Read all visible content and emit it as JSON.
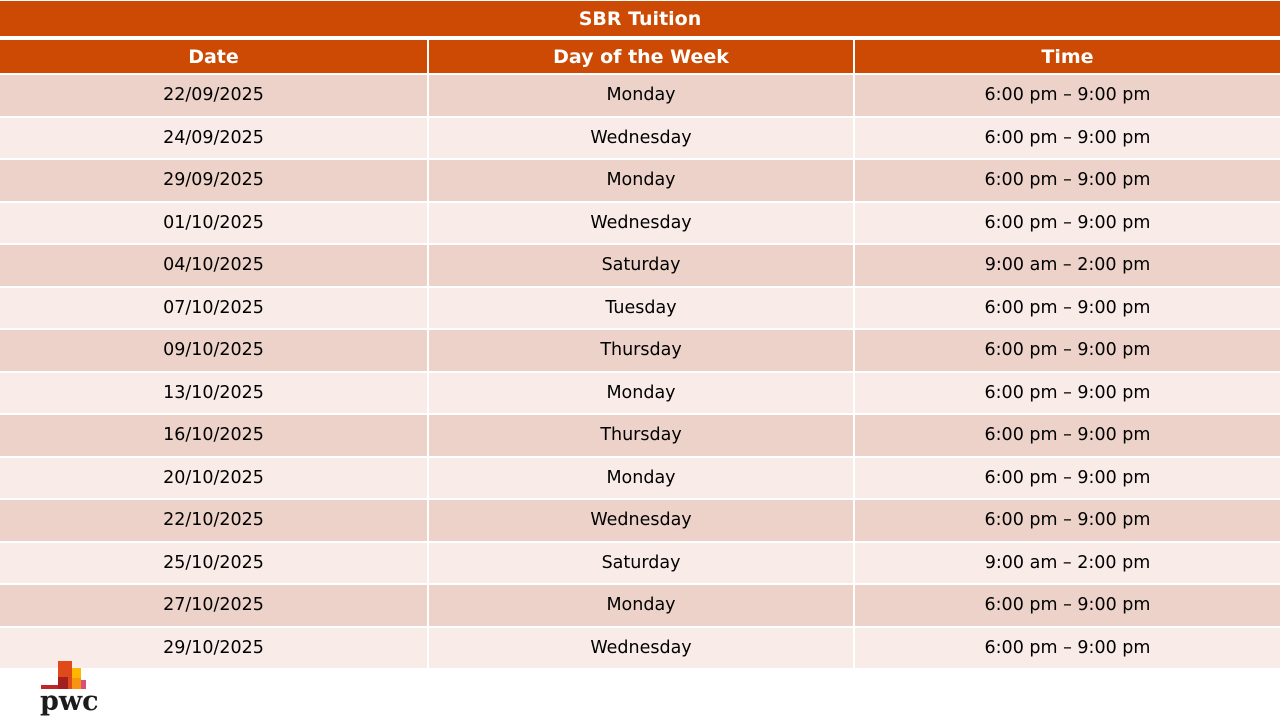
{
  "title": "SBR Tuition",
  "table": {
    "columns": [
      "Date",
      "Day of the Week",
      "Time"
    ],
    "rows": [
      {
        "date": "22/09/2025",
        "day": "Monday",
        "time": "6:00 pm – 9:00 pm"
      },
      {
        "date": "24/09/2025",
        "day": "Wednesday",
        "time": "6:00 pm – 9:00 pm"
      },
      {
        "date": "29/09/2025",
        "day": "Monday",
        "time": "6:00 pm – 9:00 pm"
      },
      {
        "date": "01/10/2025",
        "day": "Wednesday",
        "time": "6:00 pm – 9:00 pm"
      },
      {
        "date": "04/10/2025",
        "day": "Saturday",
        "time": "9:00 am – 2:00 pm"
      },
      {
        "date": "07/10/2025",
        "day": "Tuesday",
        "time": "6:00 pm – 9:00 pm"
      },
      {
        "date": "09/10/2025",
        "day": "Thursday",
        "time": "6:00 pm – 9:00 pm"
      },
      {
        "date": "13/10/2025",
        "day": "Monday",
        "time": "6:00 pm – 9:00 pm"
      },
      {
        "date": "16/10/2025",
        "day": "Thursday",
        "time": "6:00 pm – 9:00 pm"
      },
      {
        "date": "20/10/2025",
        "day": "Monday",
        "time": "6:00 pm – 9:00 pm"
      },
      {
        "date": "22/10/2025",
        "day": "Wednesday",
        "time": "6:00 pm – 9:00 pm"
      },
      {
        "date": "25/10/2025",
        "day": "Saturday",
        "time": "9:00 am – 2:00 pm"
      },
      {
        "date": "27/10/2025",
        "day": "Monday",
        "time": "6:00 pm – 9:00 pm"
      },
      {
        "date": "29/10/2025",
        "day": "Wednesday",
        "time": "6:00 pm – 9:00 pm"
      }
    ]
  },
  "branding": {
    "logo_text": "pwc"
  },
  "colors": {
    "accent_orange": "#CC4A04",
    "row_dark": "#EDD2C9",
    "row_light": "#F9ECE8",
    "logo_orange": "#E0491A",
    "logo_dark_red": "#A32020",
    "logo_yellow": "#FFB600",
    "logo_pink": "#DB4D7C",
    "logo_strip_red": "#C2242C"
  }
}
